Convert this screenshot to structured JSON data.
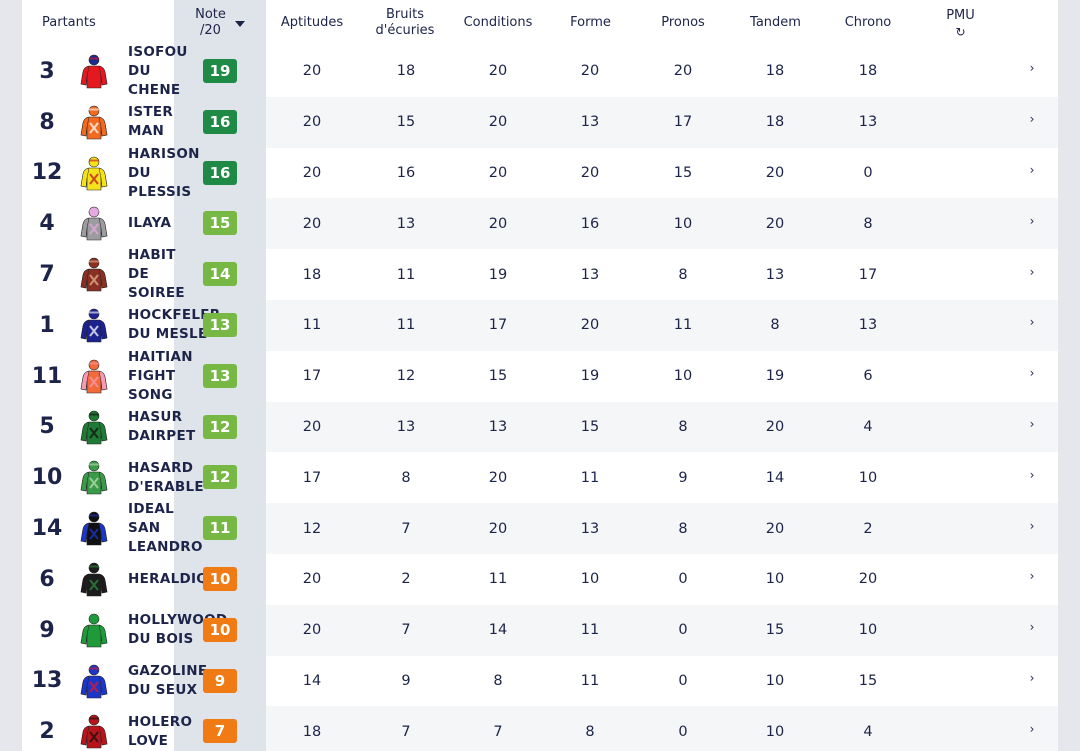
{
  "header": {
    "partants": "Partants",
    "note": "Note\n/20",
    "aptitudes": "Aptitudes",
    "bruits": "Bruits\nd'écuries",
    "conditions": "Conditions",
    "forme": "Forme",
    "pronos": "Pronos",
    "tandem": "Tandem",
    "chrono": "Chrono",
    "pmu": "PMU",
    "refresh_icon": "↻",
    "sort_icon": "caret-down-icon"
  },
  "colors": {
    "dark_green": "#1f8a45",
    "light_green": "#76b843",
    "orange": "#f07a14"
  },
  "rows": [
    {
      "num": "3",
      "name": "ISOFOU\nDU\nCHENE",
      "note": "19",
      "noteColor": "#1f8a45",
      "aptitudes": "20",
      "bruits": "18",
      "conditions": "20",
      "forme": "20",
      "pronos": "20",
      "tandem": "18",
      "chrono": "18",
      "silk": {
        "body": "#e3191f",
        "sleeves": "#e3191f",
        "cap": "#1b2a8c",
        "accent": "#e3191f"
      }
    },
    {
      "num": "8",
      "name": "ISTER\nMAN",
      "note": "16",
      "noteColor": "#1f8a45",
      "aptitudes": "20",
      "bruits": "15",
      "conditions": "20",
      "forme": "13",
      "pronos": "17",
      "tandem": "18",
      "chrono": "13",
      "silk": {
        "body": "#f26a22",
        "sleeves": "#f26a22",
        "cap": "#f26a22",
        "accent": "#ffffff"
      }
    },
    {
      "num": "12",
      "name": "HARISON\nDU\nPLESSIS",
      "note": "16",
      "noteColor": "#1f8a45",
      "aptitudes": "20",
      "bruits": "16",
      "conditions": "20",
      "forme": "20",
      "pronos": "15",
      "tandem": "20",
      "chrono": "0",
      "silk": {
        "body": "#f5e21a",
        "sleeves": "#f5e21a",
        "cap": "#f5e21a",
        "accent": "#c0141c"
      }
    },
    {
      "num": "4",
      "name": "ILAYA",
      "note": "15",
      "noteColor": "#76b843",
      "aptitudes": "20",
      "bruits": "13",
      "conditions": "20",
      "forme": "16",
      "pronos": "10",
      "tandem": "20",
      "chrono": "8",
      "silk": {
        "body": "#9c9ca0",
        "sleeves": "#9c9ca0",
        "cap": "#e6a9e0",
        "accent": "#e6a9e0"
      }
    },
    {
      "num": "7",
      "name": "HABIT\nDE\nSOIREE",
      "note": "14",
      "noteColor": "#76b843",
      "aptitudes": "18",
      "bruits": "11",
      "conditions": "19",
      "forme": "13",
      "pronos": "8",
      "tandem": "13",
      "chrono": "17",
      "silk": {
        "body": "#8a2f24",
        "sleeves": "#8a2f24",
        "cap": "#8a2f24",
        "accent": "#e8b48a"
      }
    },
    {
      "num": "1",
      "name": "HOCKFELER\nDU MESLE",
      "note": "13",
      "noteColor": "#76b843",
      "aptitudes": "11",
      "bruits": "11",
      "conditions": "17",
      "forme": "20",
      "pronos": "11",
      "tandem": "8",
      "chrono": "13",
      "silk": {
        "body": "#1c2390",
        "sleeves": "#1c2390",
        "cap": "#1c2390",
        "accent": "#ffffff"
      }
    },
    {
      "num": "11",
      "name": "HAITIAN\nFIGHT\nSONG",
      "note": "13",
      "noteColor": "#76b843",
      "aptitudes": "17",
      "bruits": "12",
      "conditions": "15",
      "forme": "19",
      "pronos": "10",
      "tandem": "19",
      "chrono": "6",
      "silk": {
        "body": "#f26a3a",
        "sleeves": "#f59ab0",
        "cap": "#f26a3a",
        "accent": "#f59ab0"
      }
    },
    {
      "num": "5",
      "name": "HASUR\nDAIRPET",
      "note": "12",
      "noteColor": "#76b843",
      "aptitudes": "20",
      "bruits": "13",
      "conditions": "13",
      "forme": "15",
      "pronos": "8",
      "tandem": "20",
      "chrono": "4",
      "silk": {
        "body": "#1e7a34",
        "sleeves": "#1e7a34",
        "cap": "#1e7a34",
        "accent": "#111111"
      }
    },
    {
      "num": "10",
      "name": "HASARD\nD'ERABLE",
      "note": "12",
      "noteColor": "#76b843",
      "aptitudes": "17",
      "bruits": "8",
      "conditions": "20",
      "forme": "11",
      "pronos": "9",
      "tandem": "14",
      "chrono": "10",
      "silk": {
        "body": "#3a9a4a",
        "sleeves": "#3a9a4a",
        "cap": "#3a9a4a",
        "accent": "#b8e0b0"
      }
    },
    {
      "num": "14",
      "name": "IDEAL\nSAN\nLEANDRO",
      "note": "11",
      "noteColor": "#76b843",
      "aptitudes": "12",
      "bruits": "7",
      "conditions": "20",
      "forme": "13",
      "pronos": "8",
      "tandem": "20",
      "chrono": "2",
      "silk": {
        "body": "#101010",
        "sleeves": "#1c36c8",
        "cap": "#101010",
        "accent": "#1c36c8"
      }
    },
    {
      "num": "6",
      "name": "HERALDIQ",
      "note": "10",
      "noteColor": "#f07a14",
      "aptitudes": "20",
      "bruits": "2",
      "conditions": "11",
      "forme": "10",
      "pronos": "0",
      "tandem": "10",
      "chrono": "20",
      "silk": {
        "body": "#1c1c1c",
        "sleeves": "#1c1c1c",
        "cap": "#1c1c1c",
        "accent": "#2e8a3a"
      }
    },
    {
      "num": "9",
      "name": "HOLLYWOOD\nDU BOIS",
      "note": "10",
      "noteColor": "#f07a14",
      "aptitudes": "20",
      "bruits": "7",
      "conditions": "14",
      "forme": "11",
      "pronos": "0",
      "tandem": "15",
      "chrono": "10",
      "silk": {
        "body": "#1f9a3a",
        "sleeves": "#1f9a3a",
        "cap": "#1f9a3a",
        "accent": "#1f9a3a"
      }
    },
    {
      "num": "13",
      "name": "GAZOLINE\nDU SEUX",
      "note": "9",
      "noteColor": "#f07a14",
      "aptitudes": "14",
      "bruits": "9",
      "conditions": "8",
      "forme": "11",
      "pronos": "0",
      "tandem": "10",
      "chrono": "15",
      "silk": {
        "body": "#1c36c8",
        "sleeves": "#1c36c8",
        "cap": "#1c36c8",
        "accent": "#e3191f"
      }
    },
    {
      "num": "2",
      "name": "HOLERO\nLOVE",
      "note": "7",
      "noteColor": "#f07a14",
      "aptitudes": "18",
      "bruits": "7",
      "conditions": "7",
      "forme": "8",
      "pronos": "0",
      "tandem": "10",
      "chrono": "4",
      "silk": {
        "body": "#b8141c",
        "sleeves": "#b8141c",
        "cap": "#b8141c",
        "accent": "#111111"
      }
    }
  ]
}
